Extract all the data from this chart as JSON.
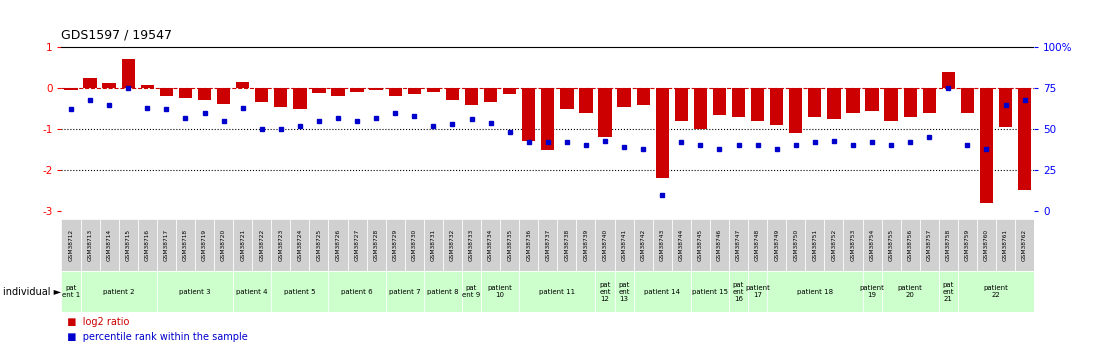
{
  "title": "GDS1597 / 19547",
  "gsm_labels": [
    "GSM38712",
    "GSM38713",
    "GSM38714",
    "GSM38715",
    "GSM38716",
    "GSM38717",
    "GSM38718",
    "GSM38719",
    "GSM38720",
    "GSM38721",
    "GSM38722",
    "GSM38723",
    "GSM38724",
    "GSM38725",
    "GSM38726",
    "GSM38727",
    "GSM38728",
    "GSM38729",
    "GSM38730",
    "GSM38731",
    "GSM38732",
    "GSM38733",
    "GSM38734",
    "GSM38735",
    "GSM38736",
    "GSM38737",
    "GSM38738",
    "GSM38739",
    "GSM38740",
    "GSM38741",
    "GSM38742",
    "GSM38743",
    "GSM38744",
    "GSM38745",
    "GSM38746",
    "GSM38747",
    "GSM38748",
    "GSM38749",
    "GSM38750",
    "GSM38751",
    "GSM38752",
    "GSM38753",
    "GSM38754",
    "GSM38755",
    "GSM38756",
    "GSM38757",
    "GSM38758",
    "GSM38759",
    "GSM38760",
    "GSM38761",
    "GSM38762"
  ],
  "log2_ratio": [
    -0.05,
    0.25,
    0.12,
    0.72,
    0.08,
    -0.18,
    -0.25,
    -0.3,
    -0.38,
    0.15,
    -0.35,
    -0.45,
    -0.5,
    -0.12,
    -0.2,
    -0.1,
    -0.05,
    -0.2,
    -0.15,
    -0.1,
    -0.3,
    -0.4,
    -0.35,
    -0.15,
    -1.3,
    -1.5,
    -0.5,
    -0.6,
    -1.2,
    -0.45,
    -0.4,
    -2.2,
    -0.8,
    -1.0,
    -0.65,
    -0.7,
    -0.8,
    -0.9,
    -1.1,
    -0.7,
    -0.75,
    -0.6,
    -0.55,
    -0.8,
    -0.7,
    -0.6,
    0.4,
    -0.6,
    -2.8,
    -0.95,
    -2.5
  ],
  "percentile_rank_pct": [
    62,
    68,
    65,
    75,
    63,
    62,
    57,
    60,
    55,
    63,
    50,
    50,
    52,
    55,
    57,
    55,
    57,
    60,
    58,
    52,
    53,
    56,
    54,
    48,
    42,
    42,
    42,
    40,
    43,
    39,
    38,
    10,
    42,
    40,
    38,
    40,
    40,
    38,
    40,
    42,
    43,
    40,
    42,
    40,
    42,
    45,
    75,
    40,
    38,
    65,
    68
  ],
  "patients": [
    {
      "label": "pat\nent 1",
      "start": 0,
      "end": 1
    },
    {
      "label": "patient 2",
      "start": 1,
      "end": 5
    },
    {
      "label": "patient 3",
      "start": 5,
      "end": 9
    },
    {
      "label": "patient 4",
      "start": 9,
      "end": 11
    },
    {
      "label": "patient 5",
      "start": 11,
      "end": 14
    },
    {
      "label": "patient 6",
      "start": 14,
      "end": 17
    },
    {
      "label": "patient 7",
      "start": 17,
      "end": 19
    },
    {
      "label": "patient 8",
      "start": 19,
      "end": 21
    },
    {
      "label": "pat\nent 9",
      "start": 21,
      "end": 22
    },
    {
      "label": "patient\n10",
      "start": 22,
      "end": 24
    },
    {
      "label": "patient 11",
      "start": 24,
      "end": 28
    },
    {
      "label": "pat\nent\n12",
      "start": 28,
      "end": 29
    },
    {
      "label": "pat\nent\n13",
      "start": 29,
      "end": 30
    },
    {
      "label": "patient 14",
      "start": 30,
      "end": 33
    },
    {
      "label": "patient 15",
      "start": 33,
      "end": 35
    },
    {
      "label": "pat\nent\n16",
      "start": 35,
      "end": 36
    },
    {
      "label": "patient\n17",
      "start": 36,
      "end": 37
    },
    {
      "label": "patient 18",
      "start": 37,
      "end": 42
    },
    {
      "label": "patient\n19",
      "start": 42,
      "end": 43
    },
    {
      "label": "patient\n20",
      "start": 43,
      "end": 46
    },
    {
      "label": "pat\nent\n21",
      "start": 46,
      "end": 47
    },
    {
      "label": "patient\n22",
      "start": 47,
      "end": 51
    }
  ],
  "ylim": [
    -3.2,
    1.1
  ],
  "yticks_left": [
    1,
    0,
    -1,
    -2,
    -3
  ],
  "yticks_right_pct": [
    100,
    75,
    50,
    25,
    0
  ],
  "bar_color": "#cc0000",
  "dot_color": "#0000cc",
  "gsm_bg_color": "#d0d0d0",
  "patient_bg_color": "#ccffcc",
  "background_color": "#ffffff",
  "legend_bar_label": "log2 ratio",
  "legend_dot_label": "percentile rank within the sample"
}
